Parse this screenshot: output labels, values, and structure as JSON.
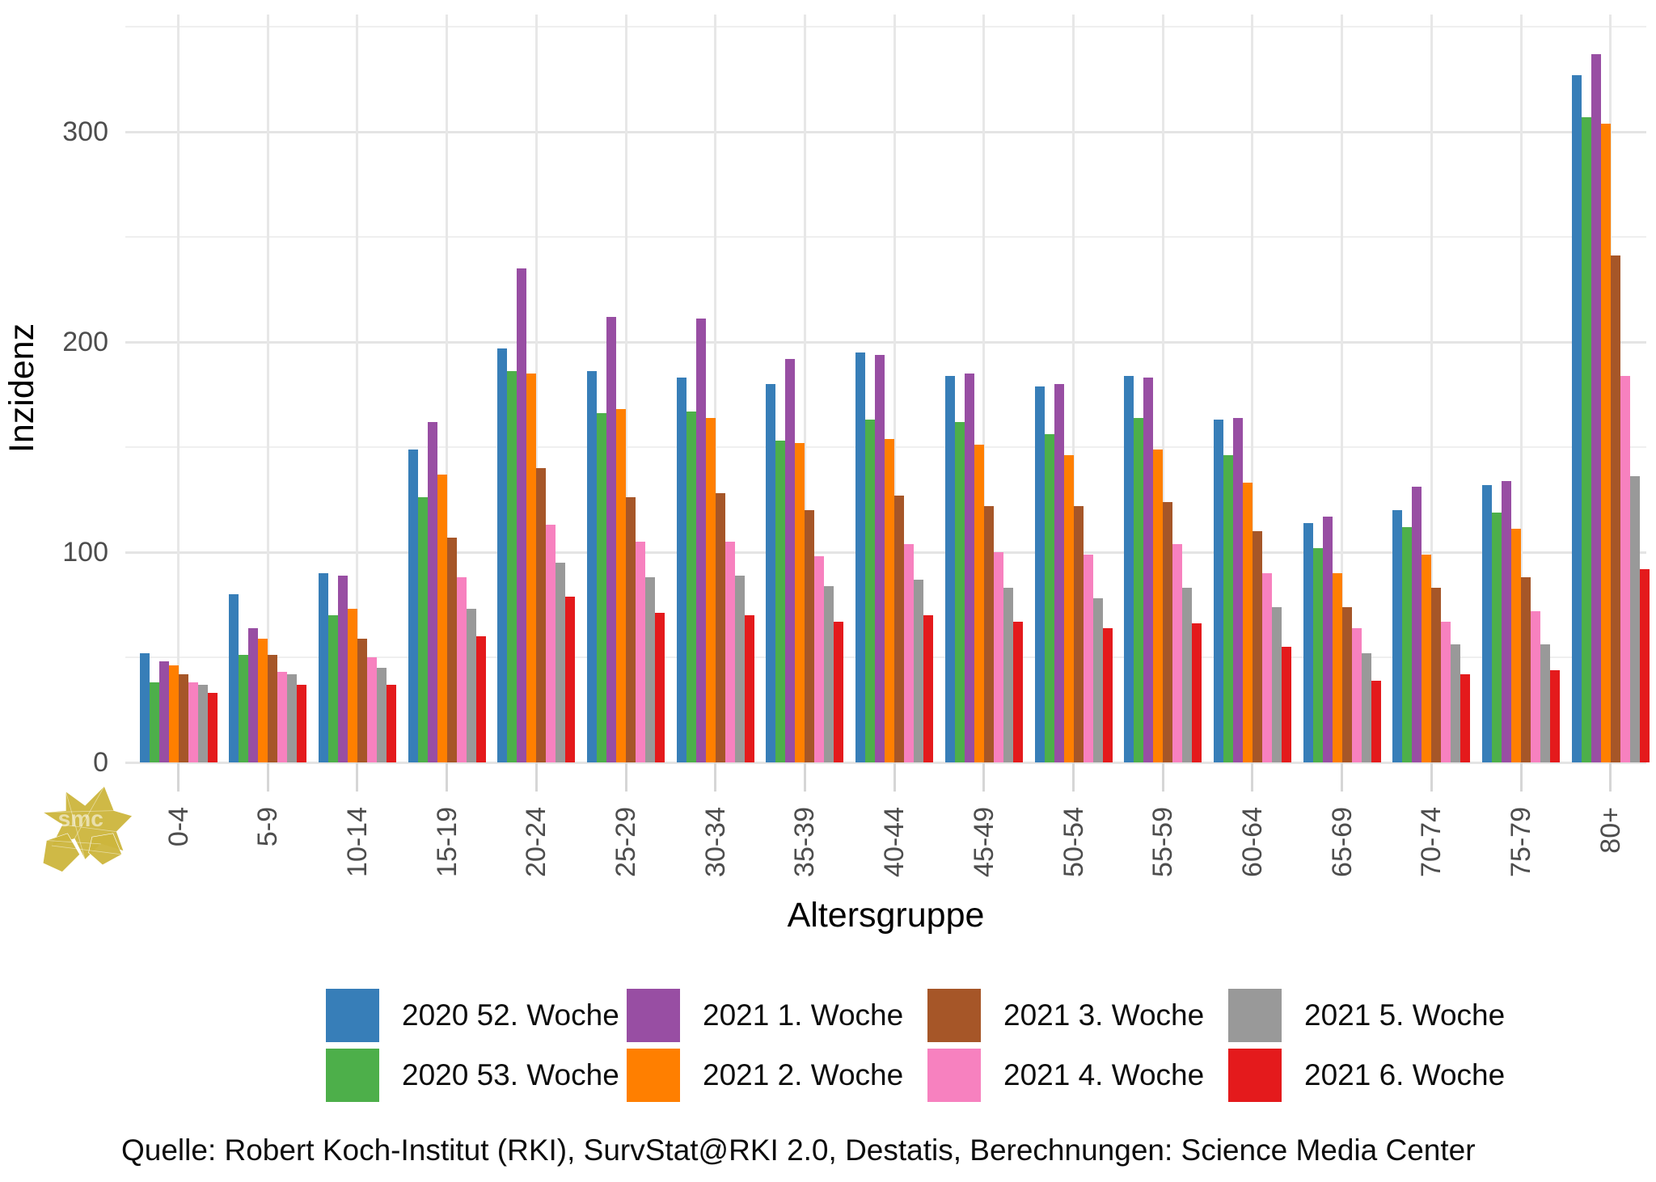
{
  "chart_data": {
    "type": "bar",
    "title": "",
    "xlabel": "Altersgruppe",
    "ylabel": "Inzidenz",
    "legend_position": "bottom",
    "grid": "on",
    "ylim": [
      0,
      355
    ],
    "y_ticks": [
      0,
      100,
      200,
      300
    ],
    "y_minor_ticks": [
      50,
      150,
      250,
      350
    ],
    "categories": [
      "0-4",
      "5-9",
      "10-14",
      "15-19",
      "20-24",
      "25-29",
      "30-34",
      "35-39",
      "40-44",
      "45-49",
      "50-54",
      "55-59",
      "60-64",
      "65-69",
      "70-74",
      "75-79",
      "80+"
    ],
    "series": [
      {
        "name": "2020 52. Woche",
        "color": "#377eb8",
        "values": [
          52,
          80,
          90,
          149,
          197,
          186,
          183,
          180,
          195,
          184,
          179,
          184,
          163,
          114,
          120,
          132,
          327
        ]
      },
      {
        "name": "2020 53. Woche",
        "color": "#4daf4a",
        "values": [
          38,
          51,
          70,
          126,
          186,
          166,
          167,
          153,
          163,
          162,
          156,
          164,
          146,
          102,
          112,
          119,
          307
        ]
      },
      {
        "name": "2021 1. Woche",
        "color": "#984ea3",
        "values": [
          48,
          64,
          89,
          162,
          235,
          212,
          211,
          192,
          194,
          185,
          180,
          183,
          164,
          117,
          131,
          134,
          337
        ]
      },
      {
        "name": "2021 2. Woche",
        "color": "#ff7f00",
        "values": [
          46,
          59,
          73,
          137,
          185,
          168,
          164,
          152,
          154,
          151,
          146,
          149,
          133,
          90,
          99,
          111,
          304
        ]
      },
      {
        "name": "2021 3. Woche",
        "color": "#a65628",
        "values": [
          42,
          51,
          59,
          107,
          140,
          126,
          128,
          120,
          127,
          122,
          122,
          124,
          110,
          74,
          83,
          88,
          241
        ]
      },
      {
        "name": "2021 4. Woche",
        "color": "#f781bf",
        "values": [
          38,
          43,
          50,
          88,
          113,
          105,
          105,
          98,
          104,
          100,
          99,
          104,
          90,
          64,
          67,
          72,
          184
        ]
      },
      {
        "name": "2021 5. Woche",
        "color": "#999999",
        "values": [
          37,
          42,
          45,
          73,
          95,
          88,
          89,
          84,
          87,
          83,
          78,
          83,
          74,
          52,
          56,
          56,
          136
        ]
      },
      {
        "name": "2021 6. Woche",
        "color": "#e41a1c",
        "values": [
          33,
          37,
          37,
          60,
          79,
          71,
          70,
          67,
          70,
          67,
          64,
          66,
          55,
          39,
          42,
          44,
          92
        ]
      }
    ]
  },
  "footer": {
    "source": "Quelle: Robert Koch-Institut (RKI), SurvStat@RKI 2.0, Destatis, Berechnungen: Science Media Center"
  },
  "logo": {
    "text": "smc",
    "color": "#cdb63d"
  }
}
